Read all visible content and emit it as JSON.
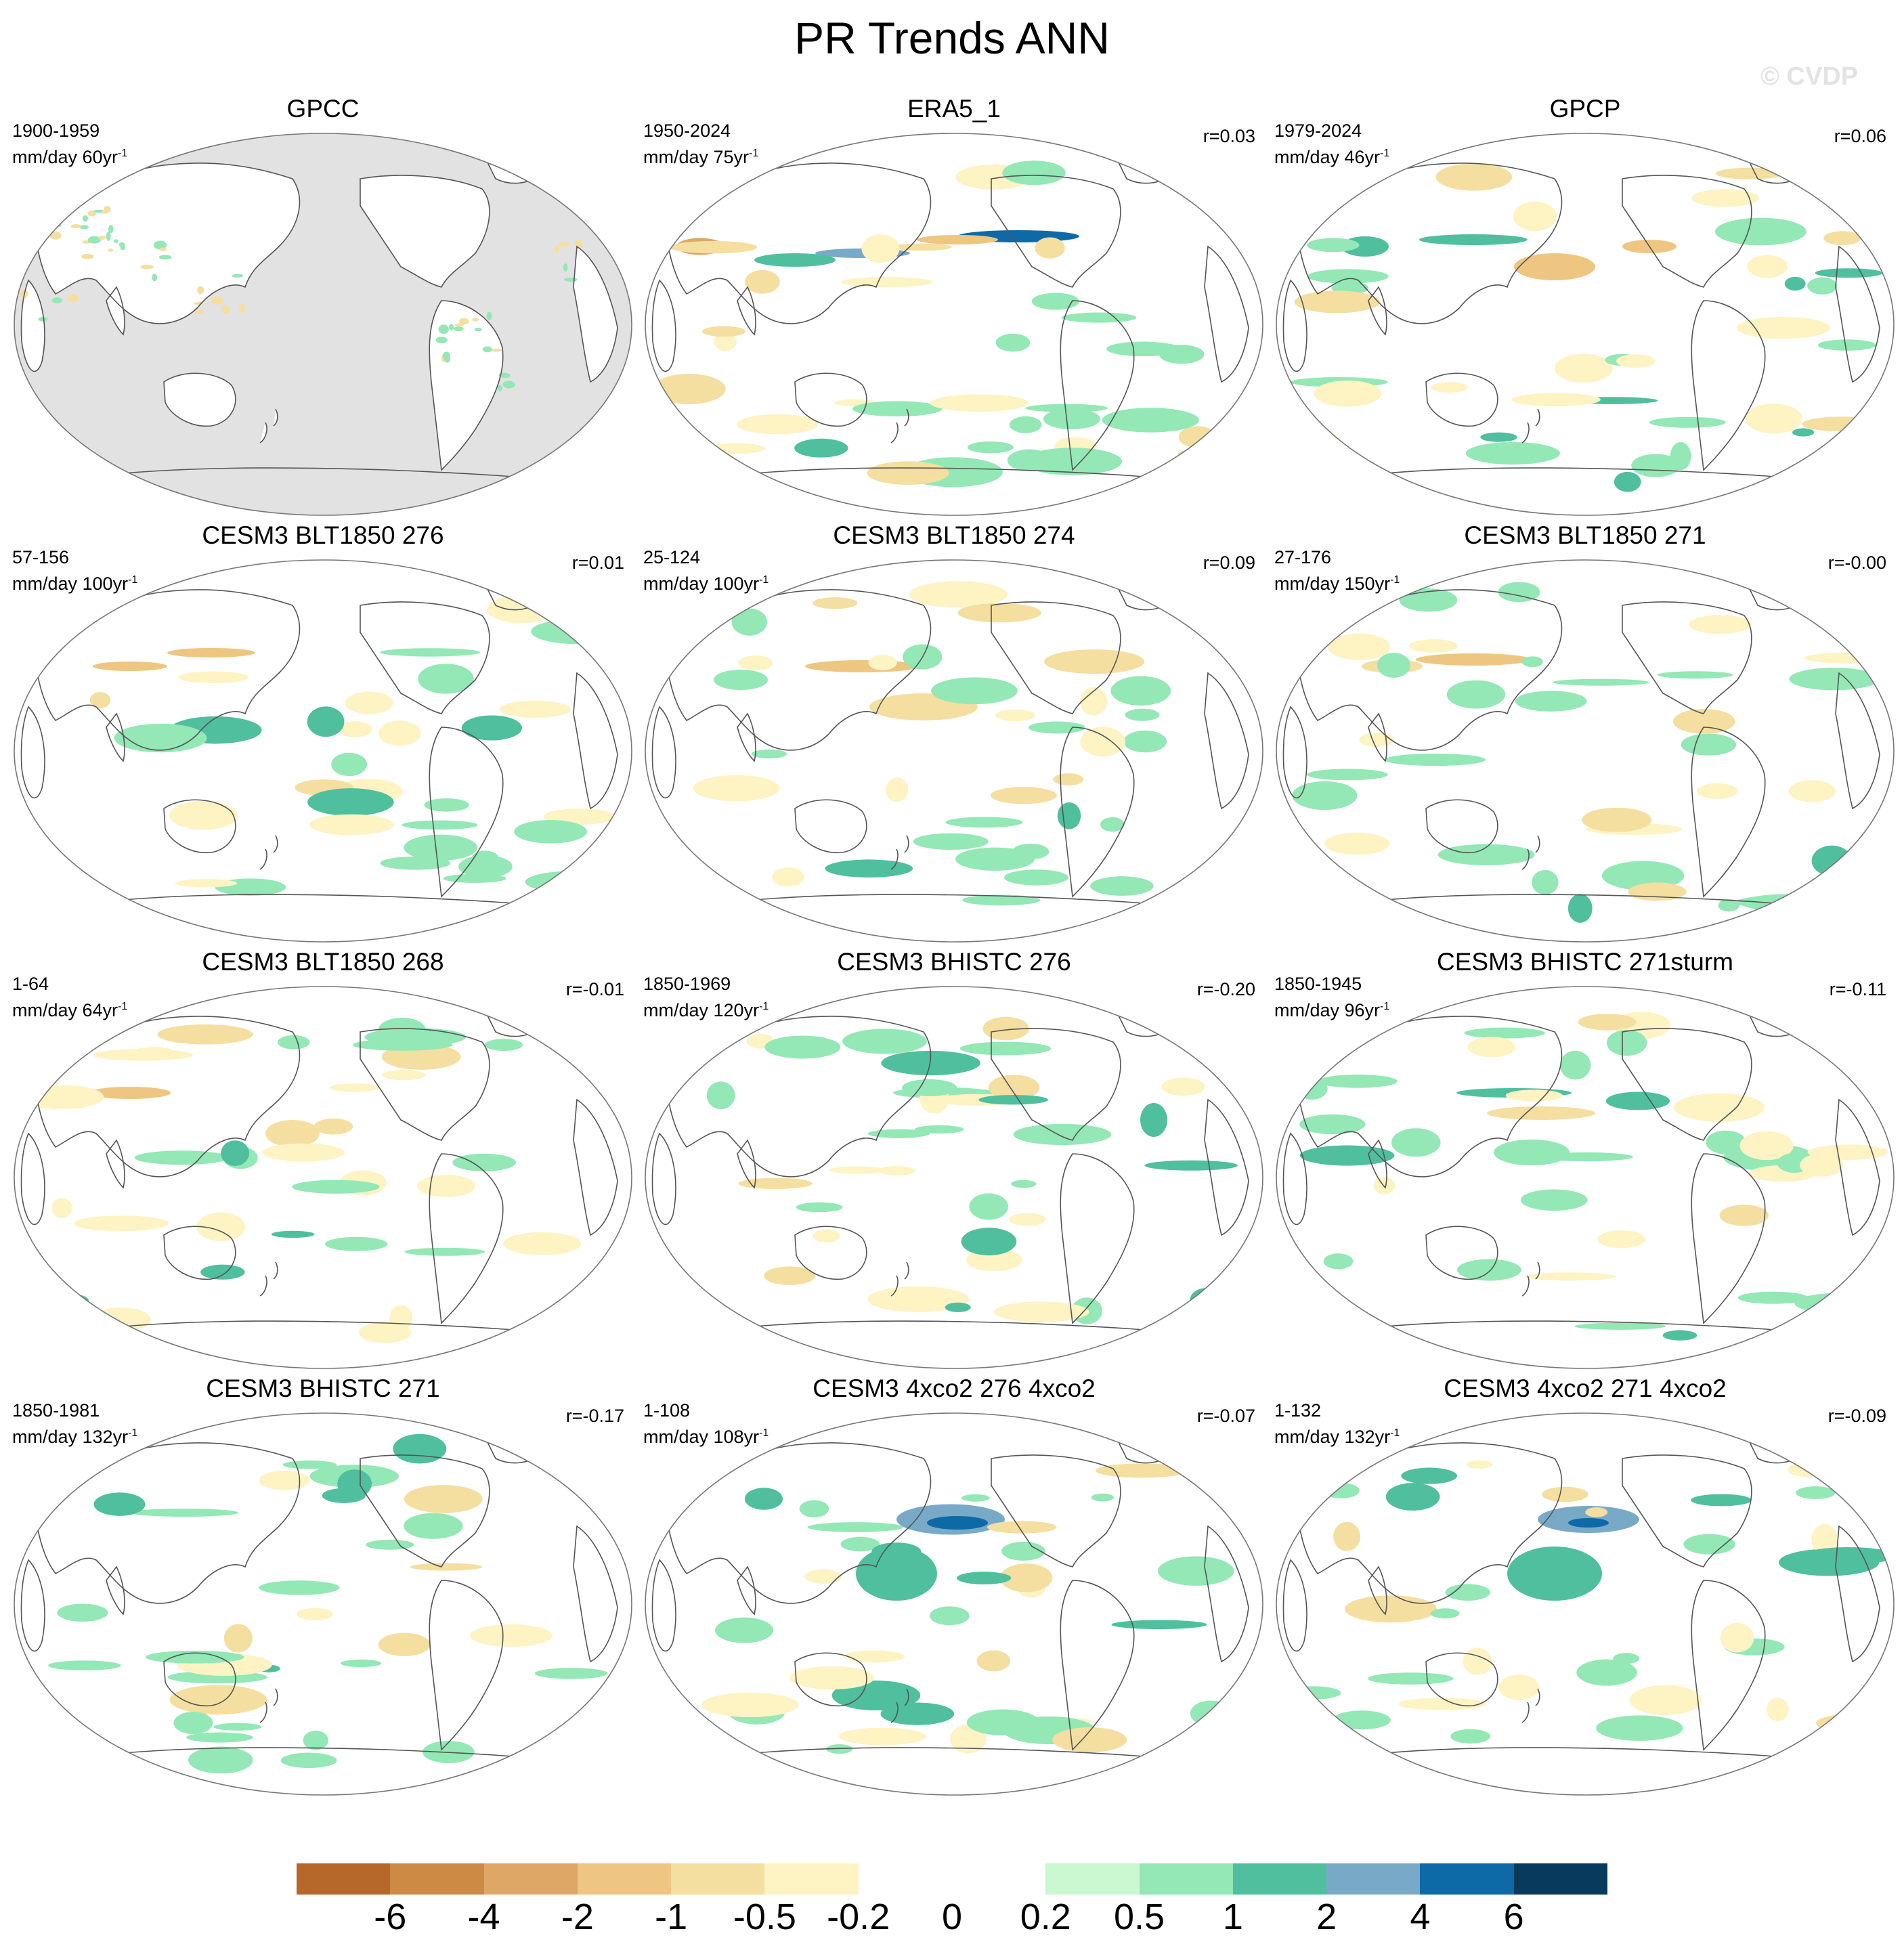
{
  "title": "PR Trends ANN",
  "watermark": "© CVDP",
  "panels": [
    {
      "title": "GPCC",
      "period": "1900-1959",
      "units": "mm/day 60yr",
      "units_exp": "-1",
      "r": "",
      "land_only": true
    },
    {
      "title": "ERA5_1",
      "period": "1950-2024",
      "units": "mm/day 75yr",
      "units_exp": "-1",
      "r": "r=0.03"
    },
    {
      "title": "GPCP",
      "period": "1979-2024",
      "units": "mm/day 46yr",
      "units_exp": "-1",
      "r": "r=0.06"
    },
    {
      "title": "CESM3 BLT1850 276",
      "period": "57-156",
      "units": "mm/day 100yr",
      "units_exp": "-1",
      "r": "r=0.01"
    },
    {
      "title": "CESM3 BLT1850 274",
      "period": "25-124",
      "units": "mm/day 100yr",
      "units_exp": "-1",
      "r": "r=0.09"
    },
    {
      "title": "CESM3 BLT1850 271",
      "period": "27-176",
      "units": "mm/day 150yr",
      "units_exp": "-1",
      "r": "r=-0.00"
    },
    {
      "title": "CESM3 BLT1850 268",
      "period": "1-64",
      "units": "mm/day 64yr",
      "units_exp": "-1",
      "r": "r=-0.01"
    },
    {
      "title": "CESM3 BHISTC 276",
      "period": "1850-1969",
      "units": "mm/day 120yr",
      "units_exp": "-1",
      "r": "r=-0.20"
    },
    {
      "title": "CESM3 BHISTC 271sturm",
      "period": "1850-1945",
      "units": "mm/day 96yr",
      "units_exp": "-1",
      "r": "r=-0.11"
    },
    {
      "title": "CESM3 BHISTC 271",
      "period": "1850-1981",
      "units": "mm/day 132yr",
      "units_exp": "-1",
      "r": "r=-0.17"
    },
    {
      "title": "CESM3 4xco2 276 4xco2",
      "period": "1-108",
      "units": "mm/day 108yr",
      "units_exp": "-1",
      "r": "r=-0.07"
    },
    {
      "title": "CESM3 4xco2 271 4xco2",
      "period": "1-132",
      "units": "mm/day 132yr",
      "units_exp": "-1",
      "r": "r=-0.09"
    }
  ],
  "colorbar": {
    "colors": [
      "#b5682a",
      "#cd8a45",
      "#dfa766",
      "#eec682",
      "#f4dfa0",
      "#fdf3c3",
      "#ffffff",
      "#ffffff",
      "#cbf7d1",
      "#93e8b6",
      "#4fbf9e",
      "#78aac8",
      "#0d6aa6",
      "#073a5c"
    ],
    "labels": [
      "-6",
      "-4",
      "-2",
      "-1",
      "-0.5",
      "-0.2",
      "0",
      "0.2",
      "0.5",
      "1",
      "2",
      "4",
      "6"
    ]
  }
}
